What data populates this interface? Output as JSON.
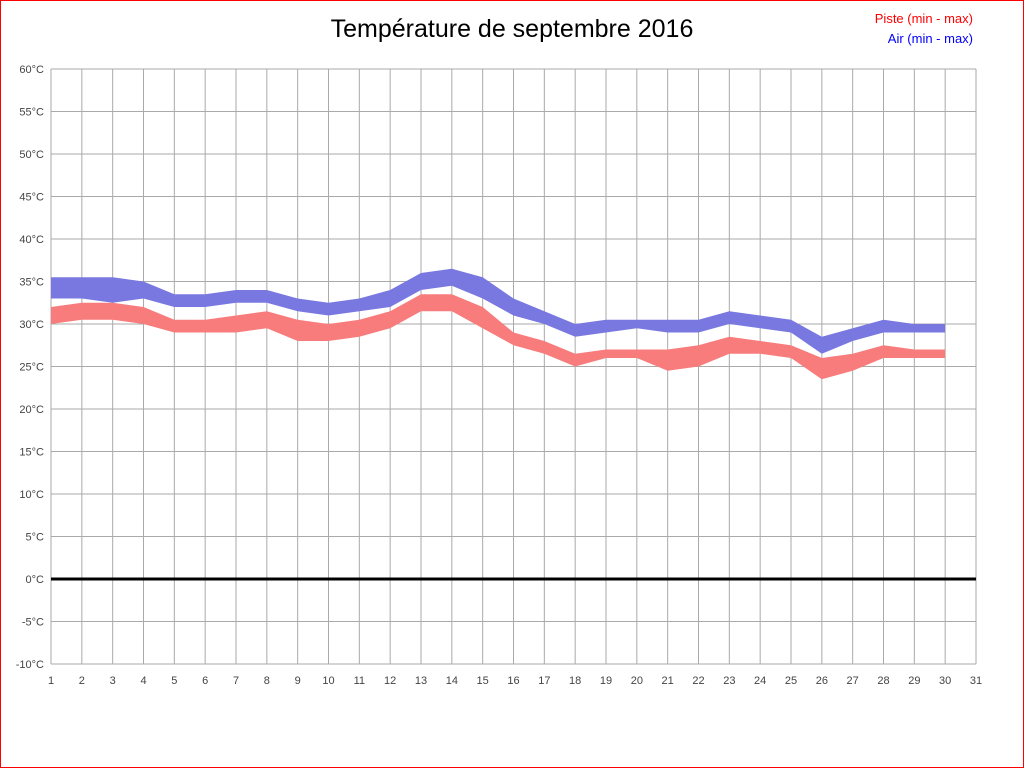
{
  "title": "Température de septembre 2016",
  "legend": {
    "piste_label": "Piste (min - max)",
    "air_label": "Air (min - max)",
    "piste_color": "#ff0000",
    "air_color": "#0000ff"
  },
  "colors": {
    "border": "#ff0000",
    "grid": "#aaaaaa",
    "zero_line": "#000000",
    "tick_text": "#444444",
    "air_band": "#7878e0",
    "piste_band": "#f87c7c"
  },
  "chart_data": {
    "type": "area",
    "title": "Température de septembre 2016",
    "xlabel": "",
    "ylabel": "",
    "ylim": [
      -10,
      60
    ],
    "grid": true,
    "legend_position": "top-right",
    "y_tick_suffix": "°C",
    "y_ticks": [
      60,
      55,
      50,
      45,
      40,
      35,
      30,
      25,
      20,
      15,
      10,
      5,
      0,
      -5,
      -10
    ],
    "x_axis_ticks": [
      1,
      2,
      3,
      4,
      5,
      6,
      7,
      8,
      9,
      10,
      11,
      12,
      13,
      14,
      15,
      16,
      17,
      18,
      19,
      20,
      21,
      22,
      23,
      24,
      25,
      26,
      27,
      28,
      29,
      30,
      31
    ],
    "x": [
      1,
      2,
      3,
      4,
      5,
      6,
      7,
      8,
      9,
      10,
      11,
      12,
      13,
      14,
      15,
      16,
      17,
      18,
      19,
      20,
      21,
      22,
      23,
      24,
      25,
      26,
      27,
      28,
      29,
      30
    ],
    "zero_line": true,
    "series": [
      {
        "name": "Air (min - max)",
        "color": "#7878e0",
        "min": [
          33,
          33,
          32.5,
          33,
          32,
          32,
          32.5,
          32.5,
          31.5,
          31,
          31.5,
          32,
          34,
          34.5,
          33,
          31,
          30,
          28.5,
          29,
          29.5,
          29,
          29,
          30,
          29.5,
          29,
          26.5,
          28,
          29,
          29,
          29
        ],
        "max": [
          35.5,
          35.5,
          35.5,
          35,
          33.5,
          33.5,
          34,
          34,
          33,
          32.5,
          33,
          34,
          36,
          36.5,
          35.5,
          33,
          31.5,
          30,
          30.5,
          30.5,
          30.5,
          30.5,
          31.5,
          31,
          30.5,
          28.5,
          29.5,
          30.5,
          30,
          30
        ]
      },
      {
        "name": "Piste (min - max)",
        "color": "#f87c7c",
        "min": [
          30,
          30.5,
          30.5,
          30,
          29,
          29,
          29,
          29.5,
          28,
          28,
          28.5,
          29.5,
          31.5,
          31.5,
          29.5,
          27.5,
          26.5,
          25,
          26,
          26,
          24.5,
          25,
          26.5,
          26.5,
          26,
          23.5,
          24.5,
          26,
          26,
          26
        ],
        "max": [
          32,
          32.5,
          32.5,
          32,
          30.5,
          30.5,
          31,
          31.5,
          30.5,
          30,
          30.5,
          31.5,
          33.5,
          33.5,
          32,
          29,
          28,
          26.5,
          27,
          27,
          27,
          27.5,
          28.5,
          28,
          27.5,
          26,
          26.5,
          27.5,
          27,
          27
        ]
      }
    ]
  }
}
